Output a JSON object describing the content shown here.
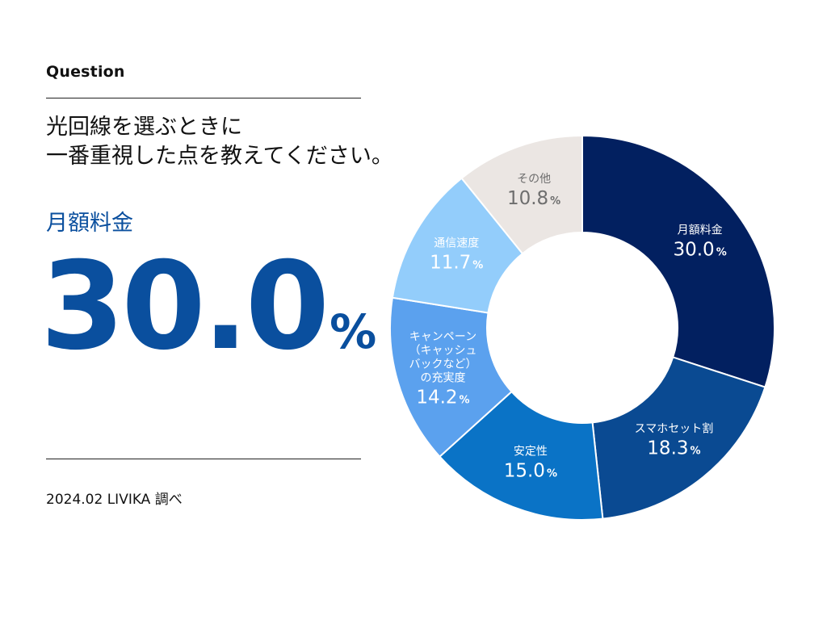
{
  "header": {
    "eyebrow": "Question",
    "question_line1": "光回線を選ぶときに",
    "question_line2": "一番重視した点を教えてください。"
  },
  "highlight": {
    "label": "月額料金",
    "value": "30.0",
    "unit": "%"
  },
  "footer": {
    "source": "2024.02 LIVIKA 調べ"
  },
  "chart_data": {
    "type": "pie",
    "donut": true,
    "unit": "%",
    "slices": [
      {
        "label_lines": [
          "月額料金"
        ],
        "value": 30.0,
        "value_text": "30.0",
        "color": "#022060",
        "text_color": "#ffffff"
      },
      {
        "label_lines": [
          "スマホセット割"
        ],
        "value": 18.3,
        "value_text": "18.3",
        "color": "#0a4a92",
        "text_color": "#ffffff"
      },
      {
        "label_lines": [
          "安定性"
        ],
        "value": 15.0,
        "value_text": "15.0",
        "color": "#0a73c6",
        "text_color": "#ffffff"
      },
      {
        "label_lines": [
          "キャンペーン",
          "（キャッシュ",
          "バックなど）",
          "の充実度"
        ],
        "value": 14.2,
        "value_text": "14.2",
        "color": "#5ba1ee",
        "text_color": "#ffffff"
      },
      {
        "label_lines": [
          "通信速度"
        ],
        "value": 11.7,
        "value_text": "11.7",
        "color": "#93cdfb",
        "text_color": "#ffffff"
      },
      {
        "label_lines": [
          "その他"
        ],
        "value": 10.8,
        "value_text": "10.8",
        "color": "#ebe6e3",
        "text_color": "#6e6e6e"
      }
    ]
  }
}
